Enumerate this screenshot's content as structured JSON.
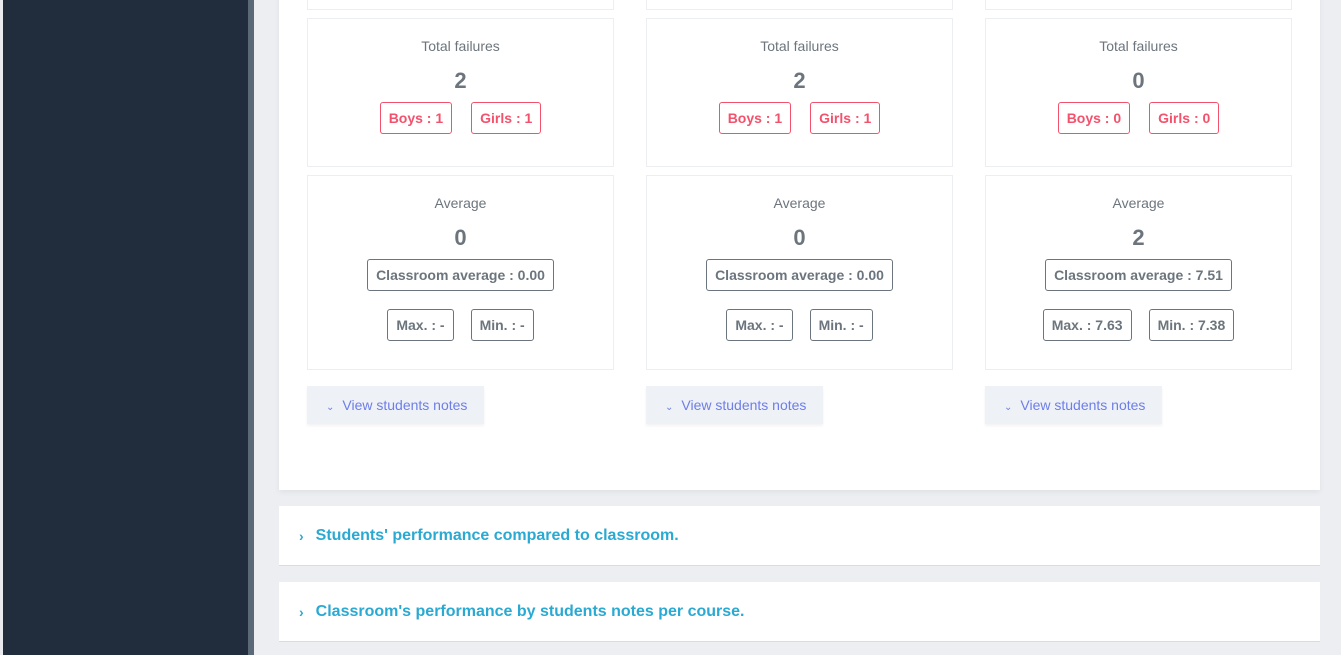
{
  "columns": [
    {
      "failures": {
        "label": "Total failures",
        "value": "2",
        "boys": "Boys : 1",
        "girls": "Girls : 1"
      },
      "average": {
        "label": "Average",
        "value": "0",
        "classroom": "Classroom average : 0.00",
        "max": "Max. : -",
        "min": "Min. : -"
      },
      "button": "View students notes"
    },
    {
      "failures": {
        "label": "Total failures",
        "value": "2",
        "boys": "Boys : 1",
        "girls": "Girls : 1"
      },
      "average": {
        "label": "Average",
        "value": "0",
        "classroom": "Classroom average : 0.00",
        "max": "Max. : -",
        "min": "Min. : -"
      },
      "button": "View students notes"
    },
    {
      "failures": {
        "label": "Total failures",
        "value": "0",
        "boys": "Boys : 0",
        "girls": "Girls : 0"
      },
      "average": {
        "label": "Average",
        "value": "2",
        "classroom": "Classroom average : 7.51",
        "max": "Max. : 7.63",
        "min": "Min. : 7.38"
      },
      "button": "View students notes"
    }
  ],
  "accordions": [
    {
      "title": "Students' performance compared to classroom.",
      "icon": "chevron-right-icon"
    },
    {
      "title": "Classroom's performance by students notes per course.",
      "icon": "chevron-right-icon"
    }
  ],
  "colors": {
    "sidebar": "#212d3d",
    "failure": "#f3526d",
    "accent": "#2aa9d2",
    "button_text": "#6d7ee8"
  }
}
